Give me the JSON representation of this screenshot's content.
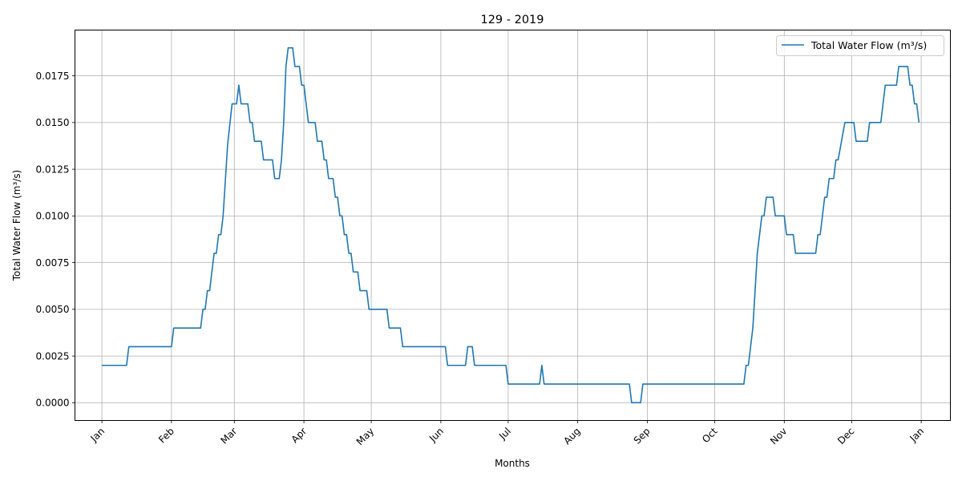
{
  "chart_data": {
    "type": "line",
    "title": "129 - 2019",
    "xlabel": "Months",
    "ylabel": "Total Water Flow (m³/s)",
    "x_tick_labels": [
      "Jan",
      "Feb",
      "Mar",
      "Apr",
      "May",
      "Jun",
      "Jul",
      "Aug",
      "Sep",
      "Oct",
      "Nov",
      "Dec",
      "Jan"
    ],
    "y_tick_labels": [
      "0.0000",
      "0.0025",
      "0.0050",
      "0.0075",
      "0.0100",
      "0.0125",
      "0.0150",
      "0.0175"
    ],
    "ylim": [
      -0.00095,
      0.01995
    ],
    "xlim": [
      "2018-12-20",
      "2020-01-14"
    ],
    "grid": true,
    "legend_position": "top-right",
    "series": [
      {
        "name": "Total Water Flow (m³/s)",
        "color": "#1f77b4",
        "points": [
          [
            "2019-01-01",
            0.002
          ],
          [
            "2019-01-12",
            0.002
          ],
          [
            "2019-01-13",
            0.003
          ],
          [
            "2019-02-01",
            0.003
          ],
          [
            "2019-02-02",
            0.004
          ],
          [
            "2019-02-14",
            0.004
          ],
          [
            "2019-02-15",
            0.005
          ],
          [
            "2019-02-16",
            0.005
          ],
          [
            "2019-02-17",
            0.006
          ],
          [
            "2019-02-18",
            0.006
          ],
          [
            "2019-02-20",
            0.008
          ],
          [
            "2019-02-21",
            0.008
          ],
          [
            "2019-02-22",
            0.009
          ],
          [
            "2019-02-23",
            0.009
          ],
          [
            "2019-02-24",
            0.01
          ],
          [
            "2019-02-26",
            0.0138
          ],
          [
            "2019-02-28",
            0.016
          ],
          [
            "2019-03-02",
            0.016
          ],
          [
            "2019-03-03",
            0.017
          ],
          [
            "2019-03-04",
            0.016
          ],
          [
            "2019-03-07",
            0.016
          ],
          [
            "2019-03-08",
            0.015
          ],
          [
            "2019-03-09",
            0.015
          ],
          [
            "2019-03-10",
            0.014
          ],
          [
            "2019-03-13",
            0.014
          ],
          [
            "2019-03-14",
            0.013
          ],
          [
            "2019-03-18",
            0.013
          ],
          [
            "2019-03-19",
            0.012
          ],
          [
            "2019-03-21",
            0.012
          ],
          [
            "2019-03-22",
            0.013
          ],
          [
            "2019-03-23",
            0.015
          ],
          [
            "2019-03-24",
            0.018
          ],
          [
            "2019-03-25",
            0.019
          ],
          [
            "2019-03-27",
            0.019
          ],
          [
            "2019-03-28",
            0.018
          ],
          [
            "2019-03-30",
            0.018
          ],
          [
            "2019-03-31",
            0.017
          ],
          [
            "2019-04-01",
            0.017
          ],
          [
            "2019-04-03",
            0.015
          ],
          [
            "2019-04-06",
            0.015
          ],
          [
            "2019-04-07",
            0.014
          ],
          [
            "2019-04-09",
            0.014
          ],
          [
            "2019-04-10",
            0.013
          ],
          [
            "2019-04-11",
            0.013
          ],
          [
            "2019-04-12",
            0.012
          ],
          [
            "2019-04-14",
            0.012
          ],
          [
            "2019-04-15",
            0.011
          ],
          [
            "2019-04-16",
            0.011
          ],
          [
            "2019-04-17",
            0.01
          ],
          [
            "2019-04-18",
            0.01
          ],
          [
            "2019-04-19",
            0.009
          ],
          [
            "2019-04-20",
            0.009
          ],
          [
            "2019-04-21",
            0.008
          ],
          [
            "2019-04-22",
            0.008
          ],
          [
            "2019-04-23",
            0.007
          ],
          [
            "2019-04-25",
            0.007
          ],
          [
            "2019-04-26",
            0.006
          ],
          [
            "2019-04-29",
            0.006
          ],
          [
            "2019-04-30",
            0.005
          ],
          [
            "2019-05-08",
            0.005
          ],
          [
            "2019-05-09",
            0.004
          ],
          [
            "2019-05-14",
            0.004
          ],
          [
            "2019-05-15",
            0.003
          ],
          [
            "2019-06-03",
            0.003
          ],
          [
            "2019-06-04",
            0.002
          ],
          [
            "2019-06-12",
            0.002
          ],
          [
            "2019-06-13",
            0.003
          ],
          [
            "2019-06-15",
            0.003
          ],
          [
            "2019-06-16",
            0.002
          ],
          [
            "2019-06-30",
            0.002
          ],
          [
            "2019-07-01",
            0.001
          ],
          [
            "2019-07-15",
            0.001
          ],
          [
            "2019-07-16",
            0.002
          ],
          [
            "2019-07-17",
            0.001
          ],
          [
            "2019-08-24",
            0.001
          ],
          [
            "2019-08-25",
            0.0
          ],
          [
            "2019-08-29",
            0.0
          ],
          [
            "2019-08-30",
            0.001
          ],
          [
            "2019-10-14",
            0.001
          ],
          [
            "2019-10-15",
            0.002
          ],
          [
            "2019-10-16",
            0.002
          ],
          [
            "2019-10-18",
            0.004
          ],
          [
            "2019-10-20",
            0.008
          ],
          [
            "2019-10-22",
            0.01
          ],
          [
            "2019-10-23",
            0.01
          ],
          [
            "2019-10-24",
            0.011
          ],
          [
            "2019-10-27",
            0.011
          ],
          [
            "2019-10-28",
            0.01
          ],
          [
            "2019-11-01",
            0.01
          ],
          [
            "2019-11-02",
            0.009
          ],
          [
            "2019-11-05",
            0.009
          ],
          [
            "2019-11-06",
            0.008
          ],
          [
            "2019-11-15",
            0.008
          ],
          [
            "2019-11-16",
            0.009
          ],
          [
            "2019-11-17",
            0.009
          ],
          [
            "2019-11-19",
            0.011
          ],
          [
            "2019-11-20",
            0.011
          ],
          [
            "2019-11-21",
            0.012
          ],
          [
            "2019-11-23",
            0.012
          ],
          [
            "2019-11-24",
            0.013
          ],
          [
            "2019-11-25",
            0.013
          ],
          [
            "2019-11-28",
            0.015
          ],
          [
            "2019-12-02",
            0.015
          ],
          [
            "2019-12-03",
            0.014
          ],
          [
            "2019-12-08",
            0.014
          ],
          [
            "2019-12-09",
            0.015
          ],
          [
            "2019-12-14",
            0.015
          ],
          [
            "2019-12-16",
            0.017
          ],
          [
            "2019-12-21",
            0.017
          ],
          [
            "2019-12-22",
            0.018
          ],
          [
            "2019-12-26",
            0.018
          ],
          [
            "2019-12-27",
            0.017
          ],
          [
            "2019-12-28",
            0.017
          ],
          [
            "2019-12-29",
            0.016
          ],
          [
            "2019-12-30",
            0.016
          ],
          [
            "2019-12-31",
            0.015
          ]
        ]
      }
    ]
  }
}
